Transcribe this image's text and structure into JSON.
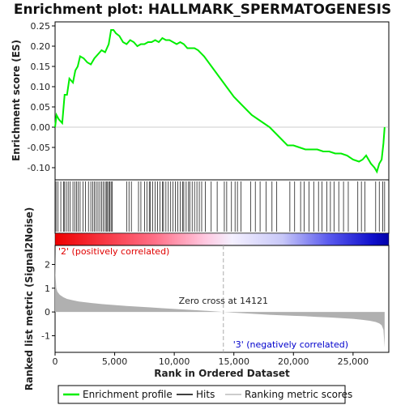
{
  "chart_data": {
    "type": "line",
    "title": "Enrichment plot: HALLMARK_SPERMATOGENESIS",
    "es_panel": {
      "ylabel": "Enrichment score (ES)",
      "ylim": [
        -0.13,
        0.26
      ],
      "yticks": [
        -0.1,
        -0.05,
        0.0,
        0.05,
        0.1,
        0.15,
        0.2,
        0.25
      ],
      "ytick_labels": [
        "-0.10",
        "-0.05",
        "0.00",
        "0.05",
        "0.10",
        "0.15",
        "0.20",
        "0.25"
      ],
      "series": [
        {
          "name": "Enrichment profile",
          "color": "#00ee00",
          "x": [
            0,
            120,
            300,
            600,
            800,
            1000,
            1200,
            1500,
            1700,
            1900,
            2100,
            2400,
            2700,
            3000,
            3300,
            3600,
            3900,
            4200,
            4500,
            4700,
            4900,
            5100,
            5400,
            5700,
            6000,
            6300,
            6600,
            6900,
            7200,
            7500,
            7800,
            8100,
            8400,
            8700,
            9000,
            9300,
            9600,
            9900,
            10200,
            10500,
            10800,
            11100,
            11400,
            11700,
            12000,
            12500,
            13000,
            13500,
            14000,
            14500,
            15000,
            15500,
            16000,
            16500,
            17000,
            17500,
            18000,
            18500,
            19000,
            19500,
            20000,
            20500,
            21000,
            21500,
            22000,
            22500,
            23000,
            23500,
            24000,
            24500,
            25000,
            25500,
            25800,
            26100,
            26500,
            26800,
            27000,
            27200,
            27400,
            27550,
            27650
          ],
          "y": [
            0.0,
            0.03,
            0.02,
            0.01,
            0.08,
            0.08,
            0.12,
            0.11,
            0.14,
            0.15,
            0.175,
            0.17,
            0.16,
            0.155,
            0.17,
            0.18,
            0.19,
            0.185,
            0.205,
            0.24,
            0.24,
            0.232,
            0.225,
            0.21,
            0.205,
            0.215,
            0.21,
            0.2,
            0.205,
            0.205,
            0.21,
            0.21,
            0.215,
            0.21,
            0.22,
            0.215,
            0.215,
            0.21,
            0.205,
            0.21,
            0.205,
            0.195,
            0.195,
            0.195,
            0.19,
            0.175,
            0.155,
            0.135,
            0.115,
            0.095,
            0.075,
            0.06,
            0.045,
            0.03,
            0.02,
            0.01,
            0.0,
            -0.015,
            -0.03,
            -0.045,
            -0.045,
            -0.05,
            -0.055,
            -0.055,
            -0.055,
            -0.06,
            -0.06,
            -0.065,
            -0.065,
            -0.07,
            -0.08,
            -0.085,
            -0.08,
            -0.07,
            -0.09,
            -0.1,
            -0.11,
            -0.09,
            -0.08,
            -0.04,
            0.0
          ]
        }
      ]
    },
    "hits_panel": {
      "legend_label": "Hits",
      "hit_positions": [
        80,
        250,
        480,
        720,
        800,
        950,
        1100,
        1250,
        1500,
        1650,
        1800,
        1950,
        2100,
        2350,
        2550,
        2800,
        3000,
        3150,
        3300,
        3450,
        3600,
        3750,
        3900,
        4050,
        4200,
        4300,
        4400,
        4500,
        4600,
        4700,
        4800,
        6000,
        6200,
        6400,
        7000,
        7200,
        7500,
        7700,
        7900,
        8000,
        8200,
        8400,
        8600,
        8800,
        9000,
        9100,
        9300,
        9500,
        9700,
        9900,
        10100,
        10300,
        10500,
        10700,
        10800,
        11000,
        11200,
        11300,
        11500,
        11700,
        11900,
        12100,
        12300,
        12600,
        13100,
        13600,
        14200,
        14400,
        14800,
        15100,
        15300,
        15600,
        16400,
        16800,
        17200,
        17700,
        18200,
        18600,
        19700,
        20100,
        20600,
        20900,
        21300,
        21700,
        22100,
        22400,
        22800,
        23100,
        23400,
        23800,
        24200,
        24600,
        25400,
        25700,
        26000,
        26900,
        27200,
        27500,
        27650
      ]
    },
    "rank_panel": {
      "ylabel": "Ranked list metric (Signal2Noise)",
      "xlabel": "Rank in Ordered Dataset",
      "ylim": [
        -1.7,
        2.8
      ],
      "yticks": [
        -1,
        0,
        1,
        2
      ],
      "ytick_labels": [
        "-1",
        "0",
        "1",
        "2"
      ],
      "xlim": [
        0,
        28000
      ],
      "xticks": [
        0,
        5000,
        10000,
        15000,
        20000,
        25000
      ],
      "xtick_labels": [
        "0",
        "5,000",
        "10,000",
        "15,000",
        "20,000",
        "25,000"
      ],
      "metric_curve": {
        "legend_label": "Ranking metric scores",
        "x": [
          0,
          30,
          100,
          200,
          400,
          700,
          1000,
          1500,
          2000,
          3000,
          4000,
          5000,
          6000,
          7000,
          8000,
          9000,
          10000,
          11000,
          12000,
          13000,
          14121,
          15000,
          16000,
          17000,
          18000,
          19000,
          20000,
          21000,
          22000,
          23000,
          24000,
          25000,
          25800,
          26400,
          26900,
          27200,
          27400,
          27550,
          27650
        ],
        "y": [
          2.6,
          1.6,
          1.0,
          0.85,
          0.72,
          0.62,
          0.55,
          0.49,
          0.44,
          0.38,
          0.33,
          0.29,
          0.25,
          0.22,
          0.19,
          0.16,
          0.13,
          0.1,
          0.07,
          0.04,
          0.0,
          -0.03,
          -0.06,
          -0.09,
          -0.12,
          -0.14,
          -0.16,
          -0.18,
          -0.21,
          -0.23,
          -0.26,
          -0.29,
          -0.33,
          -0.37,
          -0.42,
          -0.48,
          -0.56,
          -0.75,
          -1.5
        ]
      },
      "zero_cross_label": "Zero cross at 14121",
      "zero_cross_rank": 14121,
      "pos_label": "'2' (positively correlated)",
      "neg_label": "'3' (negatively correlated)",
      "pos_color": "#e00000",
      "neg_color": "#0000cc"
    },
    "legend": {
      "placement": "bottom",
      "items": [
        {
          "label": "Enrichment profile",
          "color": "#00ee00"
        },
        {
          "label": "Hits",
          "color": "#000000"
        },
        {
          "label": "Ranking metric scores",
          "color": "#bbbbbb"
        }
      ]
    },
    "total_rank": 27650
  }
}
